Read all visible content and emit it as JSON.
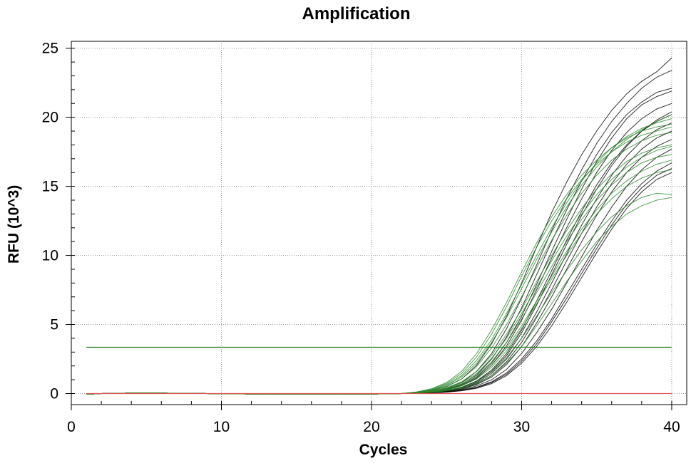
{
  "chart_data": {
    "type": "line",
    "title": "Amplification",
    "xlabel": "Cycles",
    "ylabel": "RFU (10^3)",
    "xlim": [
      0,
      41
    ],
    "ylim": [
      -0.8,
      25.5
    ],
    "x_ticks": [
      0,
      10,
      20,
      30,
      40
    ],
    "y_ticks": [
      0,
      5,
      10,
      15,
      20,
      25
    ],
    "grid": true,
    "x": [
      1,
      2,
      3,
      4,
      5,
      6,
      7,
      8,
      9,
      10,
      11,
      12,
      13,
      14,
      15,
      16,
      17,
      18,
      19,
      20,
      21,
      22,
      23,
      24,
      25,
      26,
      27,
      28,
      29,
      30,
      31,
      32,
      33,
      34,
      35,
      36,
      37,
      38,
      39,
      40
    ],
    "threshold": {
      "value": 3.35,
      "color": "#1a7a1a"
    },
    "baseline": {
      "value": 0.0,
      "color": "#e05050"
    },
    "series": [
      {
        "color": "#000000",
        "values": [
          -0.05,
          0.0,
          0.02,
          0.03,
          0.03,
          0.03,
          0.02,
          0.01,
          0.0,
          -0.01,
          -0.02,
          -0.03,
          -0.04,
          -0.05,
          -0.05,
          -0.05,
          -0.05,
          -0.04,
          -0.04,
          -0.03,
          -0.02,
          0.0,
          0.08,
          0.22,
          0.5,
          1.05,
          2.05,
          3.6,
          5.6,
          8.0,
          10.6,
          13.1,
          15.3,
          17.3,
          19.0,
          20.5,
          21.7,
          22.6,
          23.3,
          24.3
        ]
      },
      {
        "color": "#000000",
        "values": [
          -0.05,
          0.0,
          0.02,
          0.03,
          0.03,
          0.03,
          0.02,
          0.01,
          0.0,
          -0.01,
          -0.02,
          -0.03,
          -0.04,
          -0.05,
          -0.05,
          -0.05,
          -0.05,
          -0.04,
          -0.04,
          -0.03,
          -0.02,
          0.0,
          0.06,
          0.17,
          0.38,
          0.8,
          1.6,
          2.9,
          4.7,
          6.9,
          9.3,
          11.8,
          14.1,
          16.2,
          18.1,
          19.7,
          21.0,
          22.1,
          22.9,
          23.4
        ]
      },
      {
        "color": "#000000",
        "values": [
          -0.05,
          0.0,
          0.02,
          0.03,
          0.03,
          0.03,
          0.02,
          0.01,
          0.0,
          -0.01,
          -0.02,
          -0.03,
          -0.04,
          -0.05,
          -0.05,
          -0.05,
          -0.05,
          -0.04,
          -0.04,
          -0.03,
          -0.02,
          0.0,
          0.05,
          0.14,
          0.32,
          0.68,
          1.35,
          2.5,
          4.1,
          6.2,
          8.6,
          11.0,
          13.3,
          15.4,
          17.3,
          18.9,
          20.2,
          21.1,
          21.8,
          22.1
        ]
      },
      {
        "color": "#000000",
        "values": [
          -0.05,
          0.0,
          0.02,
          0.03,
          0.03,
          0.03,
          0.02,
          0.01,
          0.0,
          -0.01,
          -0.02,
          -0.03,
          -0.04,
          -0.05,
          -0.05,
          -0.05,
          -0.05,
          -0.04,
          -0.04,
          -0.03,
          -0.02,
          0.0,
          0.05,
          0.12,
          0.27,
          0.57,
          1.1,
          2.05,
          3.45,
          5.3,
          7.5,
          9.8,
          12.0,
          14.1,
          16.0,
          17.6,
          18.9,
          19.9,
          20.6,
          21.0
        ]
      },
      {
        "color": "#000000",
        "values": [
          -0.05,
          0.0,
          0.02,
          0.03,
          0.03,
          0.03,
          0.02,
          0.01,
          0.0,
          -0.01,
          -0.02,
          -0.03,
          -0.04,
          -0.05,
          -0.05,
          -0.05,
          -0.05,
          -0.04,
          -0.04,
          -0.03,
          -0.02,
          0.0,
          0.04,
          0.1,
          0.22,
          0.46,
          0.9,
          1.7,
          2.9,
          4.6,
          6.7,
          8.9,
          11.1,
          13.2,
          15.1,
          16.7,
          18.0,
          19.0,
          19.7,
          20.2
        ]
      },
      {
        "color": "#000000",
        "values": [
          -0.05,
          0.0,
          0.02,
          0.03,
          0.03,
          0.03,
          0.02,
          0.01,
          0.0,
          -0.01,
          -0.02,
          -0.03,
          -0.04,
          -0.05,
          -0.05,
          -0.05,
          -0.05,
          -0.04,
          -0.04,
          -0.03,
          -0.02,
          0.0,
          0.04,
          0.09,
          0.19,
          0.4,
          0.78,
          1.45,
          2.5,
          4.0,
          5.9,
          8.0,
          10.1,
          12.2,
          14.1,
          15.8,
          17.2,
          18.3,
          19.1,
          19.6
        ]
      },
      {
        "color": "#000000",
        "values": [
          -0.05,
          0.0,
          0.02,
          0.03,
          0.03,
          0.03,
          0.02,
          0.01,
          0.0,
          -0.01,
          -0.02,
          -0.03,
          -0.04,
          -0.05,
          -0.05,
          -0.05,
          -0.05,
          -0.04,
          -0.04,
          -0.03,
          -0.02,
          0.0,
          0.03,
          0.08,
          0.16,
          0.33,
          0.65,
          1.2,
          2.1,
          3.4,
          5.1,
          7.0,
          9.0,
          11.0,
          12.9,
          14.6,
          16.0,
          17.1,
          17.9,
          18.4
        ]
      },
      {
        "color": "#000000",
        "values": [
          -0.05,
          0.0,
          0.02,
          0.03,
          0.03,
          0.03,
          0.02,
          0.01,
          0.0,
          -0.01,
          -0.02,
          -0.03,
          -0.04,
          -0.05,
          -0.05,
          -0.05,
          -0.05,
          -0.04,
          -0.04,
          -0.03,
          -0.02,
          0.0,
          0.03,
          0.07,
          0.14,
          0.28,
          0.55,
          1.0,
          1.75,
          2.9,
          4.4,
          6.1,
          8.0,
          9.9,
          11.8,
          13.5,
          15.0,
          16.2,
          17.1,
          17.7
        ]
      },
      {
        "color": "#000000",
        "values": [
          -0.05,
          0.0,
          0.02,
          0.03,
          0.03,
          0.03,
          0.02,
          0.01,
          0.0,
          -0.01,
          -0.02,
          -0.03,
          -0.04,
          -0.05,
          -0.05,
          -0.05,
          -0.05,
          -0.04,
          -0.04,
          -0.03,
          -0.02,
          0.0,
          0.03,
          0.06,
          0.12,
          0.24,
          0.46,
          0.85,
          1.5,
          2.5,
          3.8,
          5.4,
          7.2,
          9.0,
          10.8,
          12.5,
          14.0,
          15.2,
          16.1,
          16.7
        ]
      },
      {
        "color": "#000000",
        "values": [
          -0.05,
          0.0,
          0.02,
          0.03,
          0.03,
          0.03,
          0.02,
          0.01,
          0.0,
          -0.01,
          -0.02,
          -0.03,
          -0.04,
          -0.05,
          -0.05,
          -0.05,
          -0.05,
          -0.04,
          -0.04,
          -0.03,
          -0.02,
          0.0,
          0.02,
          0.05,
          0.1,
          0.2,
          0.38,
          0.72,
          1.3,
          2.2,
          3.4,
          4.9,
          6.6,
          8.4,
          10.2,
          11.9,
          13.4,
          14.6,
          15.5,
          16.0
        ]
      },
      {
        "color": "#000000",
        "values": [
          -0.05,
          0.0,
          0.02,
          0.03,
          0.03,
          0.03,
          0.02,
          0.01,
          0.0,
          -0.01,
          -0.02,
          -0.03,
          -0.04,
          -0.05,
          -0.05,
          -0.05,
          -0.05,
          -0.04,
          -0.04,
          -0.03,
          -0.02,
          0.0,
          0.05,
          0.13,
          0.3,
          0.62,
          1.2,
          2.2,
          3.7,
          5.6,
          7.9,
          10.3,
          12.6,
          14.8,
          16.8,
          18.5,
          19.9,
          20.9,
          21.5,
          21.9
        ]
      },
      {
        "color": "#000000",
        "values": [
          -0.05,
          0.0,
          0.02,
          0.03,
          0.03,
          0.03,
          0.02,
          0.01,
          0.0,
          -0.01,
          -0.02,
          -0.03,
          -0.04,
          -0.05,
          -0.05,
          -0.05,
          -0.05,
          -0.04,
          -0.04,
          -0.03,
          -0.02,
          0.0,
          0.03,
          0.08,
          0.17,
          0.36,
          0.7,
          1.3,
          2.3,
          3.7,
          5.5,
          7.5,
          9.6,
          11.6,
          13.5,
          15.2,
          16.6,
          17.7,
          18.5,
          19.0
        ]
      },
      {
        "color": "#000000",
        "values": [
          -0.05,
          0.0,
          0.02,
          0.03,
          0.03,
          0.03,
          0.02,
          0.01,
          0.0,
          -0.01,
          -0.02,
          -0.03,
          -0.04,
          -0.05,
          -0.05,
          -0.05,
          -0.05,
          -0.04,
          -0.04,
          -0.03,
          -0.02,
          0.0,
          0.02,
          0.06,
          0.11,
          0.22,
          0.42,
          0.8,
          1.4,
          2.35,
          3.6,
          5.2,
          6.9,
          8.7,
          10.5,
          12.2,
          13.7,
          14.9,
          15.8,
          16.3
        ]
      },
      {
        "color": "#000000",
        "values": [
          -0.05,
          0.0,
          0.02,
          0.03,
          0.03,
          0.03,
          0.02,
          0.01,
          0.0,
          -0.01,
          -0.02,
          -0.03,
          -0.04,
          -0.05,
          -0.05,
          -0.05,
          -0.05,
          -0.04,
          -0.04,
          -0.03,
          -0.02,
          0.0,
          0.04,
          0.1,
          0.21,
          0.44,
          0.86,
          1.6,
          2.75,
          4.4,
          6.4,
          8.6,
          10.8,
          12.9,
          14.8,
          16.5,
          17.9,
          19.0,
          19.8,
          20.4
        ]
      },
      {
        "color": "#2a8a2a",
        "values": [
          -0.05,
          0.0,
          0.02,
          0.03,
          0.03,
          0.03,
          0.02,
          0.01,
          0.0,
          -0.01,
          -0.02,
          -0.03,
          -0.04,
          -0.05,
          -0.05,
          -0.05,
          -0.05,
          -0.04,
          -0.04,
          -0.03,
          -0.02,
          0.0,
          0.12,
          0.35,
          0.8,
          1.6,
          2.9,
          4.6,
          6.6,
          8.8,
          10.9,
          12.8,
          14.4,
          15.8,
          16.9,
          17.8,
          18.5,
          19.0,
          19.3,
          19.5
        ]
      },
      {
        "color": "#2a8a2a",
        "values": [
          -0.05,
          0.0,
          0.02,
          0.03,
          0.03,
          0.03,
          0.02,
          0.01,
          0.0,
          -0.01,
          -0.02,
          -0.03,
          -0.04,
          -0.05,
          -0.05,
          -0.05,
          -0.05,
          -0.04,
          -0.04,
          -0.03,
          -0.02,
          0.0,
          0.1,
          0.28,
          0.65,
          1.3,
          2.4,
          3.9,
          5.8,
          7.9,
          10.0,
          12.0,
          13.8,
          15.4,
          16.7,
          17.8,
          18.6,
          19.2,
          19.6,
          19.9
        ]
      },
      {
        "color": "#2a8a2a",
        "values": [
          -0.05,
          0.0,
          0.02,
          0.03,
          0.03,
          0.03,
          0.02,
          0.01,
          0.0,
          -0.01,
          -0.02,
          -0.03,
          -0.04,
          -0.05,
          -0.05,
          -0.05,
          -0.05,
          -0.04,
          -0.04,
          -0.03,
          -0.02,
          0.0,
          0.08,
          0.22,
          0.52,
          1.05,
          1.95,
          3.3,
          5.0,
          7.0,
          9.1,
          11.1,
          12.9,
          14.5,
          15.8,
          16.9,
          17.7,
          18.3,
          18.7,
          18.9
        ]
      },
      {
        "color": "#2a8a2a",
        "values": [
          -0.05,
          0.0,
          0.02,
          0.03,
          0.03,
          0.03,
          0.02,
          0.01,
          0.0,
          -0.01,
          -0.02,
          -0.03,
          -0.04,
          -0.05,
          -0.05,
          -0.05,
          -0.05,
          -0.04,
          -0.04,
          -0.03,
          -0.02,
          0.0,
          0.07,
          0.18,
          0.42,
          0.85,
          1.6,
          2.75,
          4.3,
          6.1,
          8.1,
          10.0,
          11.8,
          13.4,
          14.8,
          15.9,
          16.8,
          17.4,
          17.8,
          18.0
        ]
      },
      {
        "color": "#2a8a2a",
        "values": [
          -0.05,
          0.0,
          0.02,
          0.03,
          0.03,
          0.03,
          0.02,
          0.01,
          0.0,
          -0.01,
          -0.02,
          -0.03,
          -0.04,
          -0.05,
          -0.05,
          -0.05,
          -0.05,
          -0.04,
          -0.04,
          -0.03,
          -0.02,
          0.0,
          0.06,
          0.15,
          0.34,
          0.7,
          1.3,
          2.3,
          3.7,
          5.4,
          7.3,
          9.2,
          11.0,
          12.6,
          14.0,
          15.1,
          16.0,
          16.7,
          17.1,
          17.3
        ]
      },
      {
        "color": "#2a8a2a",
        "values": [
          -0.05,
          0.0,
          0.02,
          0.03,
          0.03,
          0.03,
          0.02,
          0.01,
          0.0,
          -0.01,
          -0.02,
          -0.03,
          -0.04,
          -0.05,
          -0.05,
          -0.05,
          -0.05,
          -0.04,
          -0.04,
          -0.03,
          -0.02,
          0.0,
          0.05,
          0.12,
          0.27,
          0.55,
          1.05,
          1.9,
          3.1,
          4.7,
          6.5,
          8.3,
          10.0,
          11.6,
          13.0,
          14.1,
          15.0,
          15.6,
          16.0,
          16.2
        ]
      },
      {
        "color": "#2a8a2a",
        "values": [
          -0.05,
          0.0,
          0.02,
          0.03,
          0.03,
          0.03,
          0.02,
          0.01,
          0.0,
          -0.01,
          -0.02,
          -0.03,
          -0.04,
          -0.05,
          -0.05,
          -0.05,
          -0.05,
          -0.04,
          -0.04,
          -0.03,
          -0.02,
          0.0,
          0.04,
          0.1,
          0.22,
          0.45,
          0.85,
          1.55,
          2.6,
          4.0,
          5.6,
          7.3,
          8.9,
          10.4,
          11.7,
          12.8,
          13.6,
          14.2,
          14.5,
          14.4
        ]
      },
      {
        "color": "#2a8a2a",
        "values": [
          -0.05,
          0.0,
          0.02,
          0.03,
          0.03,
          0.03,
          0.02,
          0.01,
          0.0,
          -0.01,
          -0.02,
          -0.03,
          -0.04,
          -0.05,
          -0.05,
          -0.05,
          -0.05,
          -0.04,
          -0.04,
          -0.03,
          -0.02,
          0.0,
          0.04,
          0.09,
          0.19,
          0.38,
          0.72,
          1.3,
          2.2,
          3.4,
          4.9,
          6.5,
          8.1,
          9.6,
          11.0,
          12.1,
          13.0,
          13.6,
          14.0,
          14.2
        ]
      },
      {
        "color": "#2a8a2a",
        "values": [
          -0.05,
          0.0,
          0.02,
          0.03,
          0.03,
          0.03,
          0.02,
          0.01,
          0.0,
          -0.01,
          -0.02,
          -0.03,
          -0.04,
          -0.05,
          -0.05,
          -0.05,
          -0.05,
          -0.04,
          -0.04,
          -0.03,
          -0.02,
          0.0,
          0.09,
          0.25,
          0.58,
          1.2,
          2.2,
          3.7,
          5.5,
          7.6,
          9.7,
          11.7,
          13.5,
          15.1,
          16.4,
          17.5,
          18.4,
          19.1,
          19.7,
          20.2
        ]
      },
      {
        "color": "#2a8a2a",
        "values": [
          -0.05,
          0.0,
          0.02,
          0.03,
          0.03,
          0.03,
          0.02,
          0.01,
          0.0,
          -0.01,
          -0.02,
          -0.03,
          -0.04,
          -0.05,
          -0.05,
          -0.05,
          -0.05,
          -0.04,
          -0.04,
          -0.03,
          -0.02,
          0.0,
          0.06,
          0.16,
          0.38,
          0.78,
          1.45,
          2.55,
          4.0,
          5.8,
          7.7,
          9.6,
          11.4,
          13.0,
          14.4,
          15.5,
          16.4,
          17.1,
          17.6,
          17.9
        ]
      },
      {
        "color": "#2a8a2a",
        "values": [
          -0.05,
          0.0,
          0.02,
          0.03,
          0.03,
          0.03,
          0.02,
          0.01,
          0.0,
          -0.01,
          -0.02,
          -0.03,
          -0.04,
          -0.05,
          -0.05,
          -0.05,
          -0.05,
          -0.04,
          -0.04,
          -0.03,
          -0.02,
          0.0,
          0.05,
          0.13,
          0.3,
          0.6,
          1.15,
          2.05,
          3.3,
          4.9,
          6.7,
          8.5,
          10.3,
          11.9,
          13.3,
          14.5,
          15.4,
          16.1,
          16.6,
          16.9
        ]
      },
      {
        "color": "#2a8a2a",
        "values": [
          -0.05,
          0.0,
          0.02,
          0.03,
          0.03,
          0.03,
          0.02,
          0.01,
          0.0,
          -0.01,
          -0.02,
          -0.03,
          -0.04,
          -0.05,
          -0.05,
          -0.05,
          -0.05,
          -0.04,
          -0.04,
          -0.03,
          -0.02,
          0.0,
          0.11,
          0.31,
          0.72,
          1.45,
          2.65,
          4.3,
          6.3,
          8.5,
          10.6,
          12.5,
          14.1,
          15.5,
          16.6,
          17.5,
          18.2,
          18.7,
          19.0,
          19.3
        ]
      }
    ]
  }
}
